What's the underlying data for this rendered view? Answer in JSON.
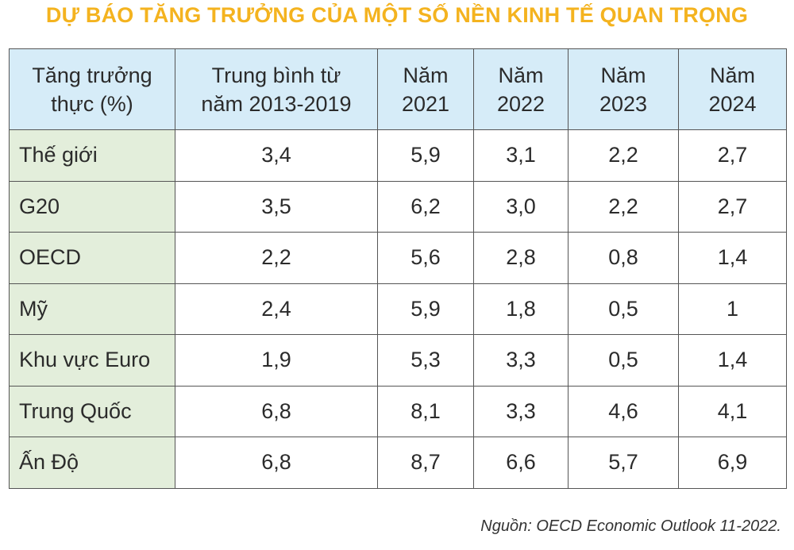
{
  "title": "DỰ BÁO TĂNG TRƯỞNG CỦA MỘT SỐ NỀN KINH TẾ QUAN TRỌNG",
  "source": "Nguồn: OECD Economic Outlook 11-2022.",
  "colors": {
    "title": "#f4b31f",
    "header_bg": "#d6ecf8",
    "label_col_bg": "#e3eedb",
    "border": "#555555"
  },
  "chart_data": {
    "type": "table",
    "title": "DỰ BÁO TĂNG TRƯỞNG CỦA MỘT SỐ NỀN KINH TẾ QUAN TRỌNG",
    "columns": [
      "Tăng trưởng\nthực (%)",
      "Trung bình từ\nnăm 2013-2019",
      "Năm\n2021",
      "Năm\n2022",
      "Năm\n2023",
      "Năm\n2024"
    ],
    "rows": [
      {
        "label": "Thế giới",
        "values": [
          "3,4",
          "5,9",
          "3,1",
          "2,2",
          "2,7"
        ]
      },
      {
        "label": "G20",
        "values": [
          "3,5",
          "6,2",
          "3,0",
          "2,2",
          "2,7"
        ]
      },
      {
        "label": "OECD",
        "values": [
          "2,2",
          "5,6",
          "2,8",
          "0,8",
          "1,4"
        ]
      },
      {
        "label": "Mỹ",
        "values": [
          "2,4",
          "5,9",
          "1,8",
          "0,5",
          "1"
        ]
      },
      {
        "label": "Khu vực Euro",
        "values": [
          "1,9",
          "5,3",
          "3,3",
          "0,5",
          "1,4"
        ]
      },
      {
        "label": "Trung Quốc",
        "values": [
          "6,8",
          "8,1",
          "3,3",
          "4,6",
          "4,1"
        ]
      },
      {
        "label": "Ấn Độ",
        "values": [
          "6,8",
          "8,7",
          "6,6",
          "5,7",
          "6,9"
        ]
      }
    ]
  }
}
